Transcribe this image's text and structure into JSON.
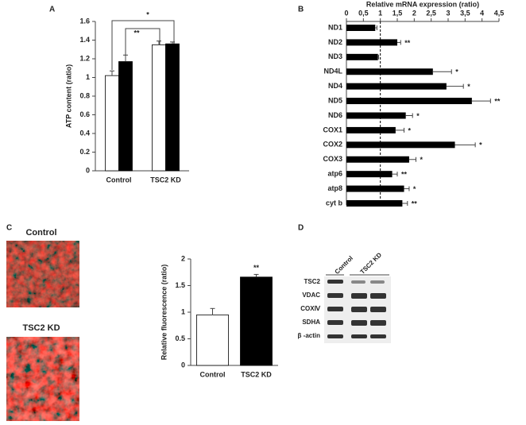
{
  "panel_labels": [
    "A",
    "B",
    "C",
    "D"
  ],
  "chart_data": [
    {
      "type": "bar",
      "ylabel": "ATP content (ratio)",
      "categories": [
        "Control",
        "TSC2 KD"
      ],
      "series": [
        {
          "color": "#ffffff",
          "values": [
            1.02,
            1.35
          ],
          "errors": [
            0.05,
            0.04
          ]
        },
        {
          "color": "#000000",
          "values": [
            1.17,
            1.36
          ],
          "errors": [
            0.07,
            0.02
          ]
        }
      ],
      "ylim": [
        0,
        1.6
      ],
      "yticks": [
        0,
        0.2,
        0.4,
        0.6,
        0.8,
        1,
        1.2,
        1.4,
        1.6
      ],
      "annotations": [
        {
          "text": "*"
        },
        {
          "text": "**"
        }
      ]
    },
    {
      "type": "barh",
      "title": "Relative mRNA expression (ratio)",
      "categories": [
        "ND1",
        "ND2",
        "ND3",
        "ND4L",
        "ND4",
        "ND5",
        "ND6",
        "COX1",
        "COX2",
        "COX3",
        "atp6",
        "atp8",
        "cyt b"
      ],
      "values": [
        0.85,
        1.5,
        0.93,
        2.55,
        2.95,
        3.7,
        1.75,
        1.45,
        3.2,
        1.85,
        1.35,
        1.7,
        1.65
      ],
      "errors": [
        0.05,
        0.1,
        0.02,
        0.55,
        0.5,
        0.55,
        0.2,
        0.25,
        0.6,
        0.2,
        0.15,
        0.15,
        0.15
      ],
      "significance": [
        null,
        "**",
        null,
        "*",
        "*",
        "**",
        "*",
        "*",
        "*",
        "*",
        "**",
        "*",
        "**"
      ],
      "color": "#000000",
      "reference_line": 1,
      "xlim": [
        0,
        4.5
      ],
      "xticks": [
        0,
        {
          "value": 0.5,
          "label": "0,5"
        },
        1,
        {
          "value": 1.5,
          "label": "1,5"
        },
        2,
        {
          "value": 2.5,
          "label": "2,5"
        },
        3,
        {
          "value": 3.5,
          "label": "3,5"
        },
        4,
        {
          "value": 4.5,
          "label": "4,5"
        }
      ]
    },
    {
      "type": "bar",
      "ylabel": "Relative fluorescence (ratio)",
      "categories": [
        "Control",
        "TSC2 KD"
      ],
      "values": [
        0.95,
        1.66
      ],
      "errors": [
        0.12,
        0.05
      ],
      "colors": [
        "#ffffff",
        "#000000"
      ],
      "significance": [
        null,
        "**"
      ],
      "ylim": [
        0,
        2
      ],
      "yticks": [
        0,
        0.5,
        1,
        1.5,
        2
      ]
    }
  ],
  "images": {
    "titles": [
      "Control",
      "TSC2 KD"
    ]
  },
  "blot": {
    "columns": [
      "Control",
      "TSC2 KD"
    ],
    "rows": [
      "TSC2",
      "VDAC",
      "COXⅣ",
      "SDHA",
      "β -actin"
    ]
  }
}
